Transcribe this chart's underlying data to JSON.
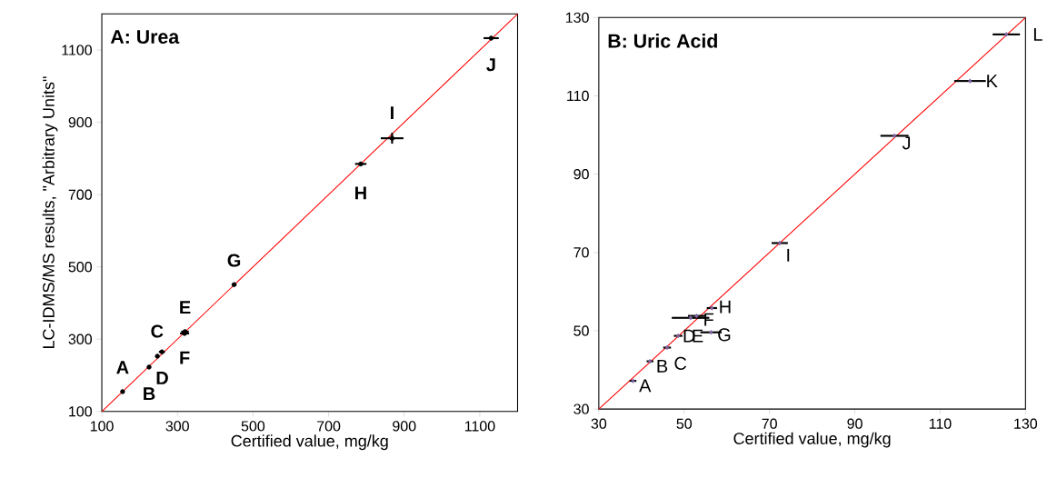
{
  "chart_data": [
    {
      "type": "scatter",
      "title": "A: Urea",
      "xlabel": "Certified value, mg/kg",
      "ylabel": "LC-IDMS/MS results, \"Arbitrary Units\"",
      "xlim": [
        100,
        1200
      ],
      "ylim": [
        100,
        1200
      ],
      "xticks": [
        100,
        300,
        500,
        700,
        900,
        1100
      ],
      "yticks": [
        100,
        300,
        500,
        700,
        900,
        1100
      ],
      "grid": false,
      "marker": "circle",
      "series": [
        {
          "color": "#000000",
          "x": [
            155,
            225,
            259,
            247,
            320,
            319,
            450,
            785,
            868,
            1130
          ],
          "values": [
            155,
            223,
            265,
            253,
            321,
            316,
            451,
            785,
            856,
            1133
          ],
          "xerrors": [
            null,
            null,
            8,
            null,
            10,
            12,
            6,
            15,
            30,
            20
          ],
          "errors": [
            null,
            null,
            null,
            null,
            null,
            null,
            null,
            null,
            15,
            null
          ]
        },
        {
          "type": "line",
          "marker": "none",
          "color": "#ff0000",
          "x": [
            100,
            1200
          ],
          "values": [
            100,
            1200
          ]
        }
      ],
      "annotations": [
        {
          "text": "A",
          "x": 155,
          "y": 155
        },
        {
          "text": "B",
          "x": 225,
          "y": 223
        },
        {
          "text": "C",
          "x": 259,
          "y": 265
        },
        {
          "text": "D",
          "x": 247,
          "y": 253
        },
        {
          "text": "E",
          "x": 320,
          "y": 321
        },
        {
          "text": "F",
          "x": 319,
          "y": 316
        },
        {
          "text": "G",
          "x": 450,
          "y": 451
        },
        {
          "text": "H",
          "x": 785,
          "y": 785
        },
        {
          "text": "I",
          "x": 868,
          "y": 856
        },
        {
          "text": "J",
          "x": 1130,
          "y": 1133
        }
      ]
    },
    {
      "type": "scatter",
      "title": "B: Uric Acid",
      "xlabel": "Certified value, mg/kg",
      "xlim": [
        30,
        130
      ],
      "ylim": [
        30,
        130
      ],
      "xticks": [
        30,
        50,
        70,
        90,
        110,
        130
      ],
      "yticks": [
        30,
        50,
        70,
        90,
        110,
        130
      ],
      "grid": false,
      "marker": "diamond",
      "series": [
        {
          "color": "#8064a2",
          "x": [
            38,
            42,
            46,
            48.6,
            51.5,
            52.9,
            56.3,
            56.5,
            72.4,
            99.3,
            117,
            125.5
          ],
          "values": [
            37.2,
            42.2,
            45.7,
            48.7,
            53.3,
            53.8,
            49.6,
            55.8,
            72.4,
            99.8,
            113.8,
            125.7
          ],
          "xerrors": [
            0.8,
            0.8,
            0.9,
            1,
            4.4,
            2,
            2.5,
            1.2,
            1.9,
            3.3,
            3.7,
            3.2
          ]
        },
        {
          "type": "line",
          "marker": "none",
          "color": "#ff0000",
          "x": [
            30,
            130
          ],
          "values": [
            30,
            130
          ]
        }
      ],
      "annotations": [
        {
          "text": "A",
          "x": 38,
          "y": 37.2
        },
        {
          "text": "B",
          "x": 42,
          "y": 42.2
        },
        {
          "text": "C",
          "x": 46,
          "y": 45.7
        },
        {
          "text": "D",
          "x": 48.6,
          "y": 48.7
        },
        {
          "text": "E",
          "x": 48.6,
          "y": 48.7
        },
        {
          "text": "F",
          "x": 52.9,
          "y": 53.8
        },
        {
          "text": "G",
          "x": 56.3,
          "y": 49.6
        },
        {
          "text": "H",
          "x": 56.5,
          "y": 55.8
        },
        {
          "text": "I",
          "x": 72.4,
          "y": 72.4
        },
        {
          "text": "J",
          "x": 99.3,
          "y": 99.8
        },
        {
          "text": "K",
          "x": 117,
          "y": 113.8
        },
        {
          "text": "L",
          "x": 125.5,
          "y": 125.7
        }
      ]
    }
  ]
}
